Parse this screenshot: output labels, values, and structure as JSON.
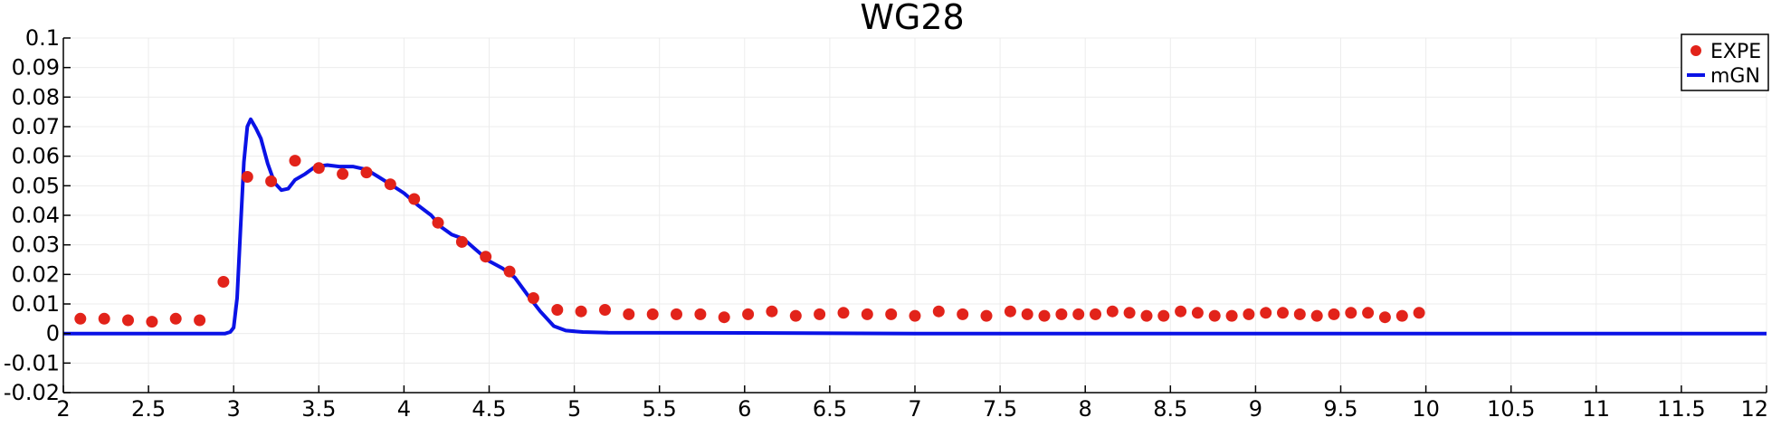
{
  "chart_data": {
    "type": "scatter",
    "title": "WG28",
    "xlabel": "",
    "ylabel": "",
    "xlim": [
      2,
      12
    ],
    "ylim": [
      -0.02,
      0.1
    ],
    "grid": true,
    "legend_position": "top-right",
    "x_ticks": [
      "2",
      "2.5",
      "3",
      "3.5",
      "4",
      "4.5",
      "5",
      "5.5",
      "6",
      "6.5",
      "7",
      "7.5",
      "8",
      "8.5",
      "9",
      "9.5",
      "10",
      "10.5",
      "11",
      "11.5",
      "12"
    ],
    "x_tick_values": [
      2,
      2.5,
      3,
      3.5,
      4,
      4.5,
      5,
      5.5,
      6,
      6.5,
      7,
      7.5,
      8,
      8.5,
      9,
      9.5,
      10,
      10.5,
      11,
      11.5,
      12
    ],
    "y_ticks": [
      "0.1",
      "0.09",
      "0.08",
      "0.07",
      "0.06",
      "0.05",
      "0.04",
      "0.03",
      "0.02",
      "0.01",
      "0",
      "-0.01",
      "-0.02"
    ],
    "y_tick_values": [
      0.1,
      0.09,
      0.08,
      0.07,
      0.06,
      0.05,
      0.04,
      0.03,
      0.02,
      0.01,
      0,
      -0.01,
      -0.02
    ],
    "series": [
      {
        "name": "EXPE",
        "kind": "scatter",
        "color": "#e2231a",
        "x": [
          2.1,
          2.24,
          2.38,
          2.52,
          2.66,
          2.8,
          2.94,
          3.08,
          3.22,
          3.36,
          3.5,
          3.64,
          3.78,
          3.92,
          4.06,
          4.2,
          4.34,
          4.48,
          4.62,
          4.76,
          4.9,
          5.04,
          5.18,
          5.32,
          5.46,
          5.6,
          5.74,
          5.88,
          6.02,
          6.16,
          6.3,
          6.44,
          6.58,
          6.72,
          6.86,
          7.0,
          7.14,
          7.28,
          7.42,
          7.56,
          7.66,
          7.76,
          7.86,
          7.96,
          8.06,
          8.16,
          8.26,
          8.36,
          8.46,
          8.56,
          8.66,
          8.76,
          8.86,
          8.96,
          9.06,
          9.16,
          9.26,
          9.36,
          9.46,
          9.56,
          9.66,
          9.76,
          9.86,
          9.96
        ],
        "y": [
          0.005,
          0.005,
          0.0045,
          0.004,
          0.005,
          0.0045,
          0.0175,
          0.053,
          0.0515,
          0.0585,
          0.056,
          0.054,
          0.0545,
          0.0505,
          0.0455,
          0.0375,
          0.031,
          0.026,
          0.021,
          0.012,
          0.008,
          0.0075,
          0.008,
          0.0065,
          0.0065,
          0.0065,
          0.0065,
          0.0055,
          0.0065,
          0.0075,
          0.006,
          0.0065,
          0.007,
          0.0065,
          0.0065,
          0.006,
          0.0075,
          0.0065,
          0.006,
          0.0075,
          0.0065,
          0.006,
          0.0065,
          0.0065,
          0.0065,
          0.0075,
          0.007,
          0.006,
          0.006,
          0.0075,
          0.007,
          0.006,
          0.006,
          0.0065,
          0.007,
          0.007,
          0.0065,
          0.006,
          0.0065,
          0.007,
          0.007,
          0.0055,
          0.006,
          0.007
        ]
      },
      {
        "name": "mGN",
        "kind": "line",
        "color": "#0a12e6",
        "x": [
          2,
          2.9,
          2.95,
          2.98,
          3.0,
          3.02,
          3.04,
          3.06,
          3.08,
          3.1,
          3.13,
          3.16,
          3.2,
          3.24,
          3.28,
          3.32,
          3.36,
          3.42,
          3.48,
          3.55,
          3.62,
          3.7,
          3.78,
          3.85,
          3.92,
          4.0,
          4.08,
          4.16,
          4.22,
          4.28,
          4.35,
          4.42,
          4.5,
          4.58,
          4.65,
          4.72,
          4.8,
          4.88,
          4.95,
          5.05,
          5.2,
          6.0,
          7.0,
          12
        ],
        "y": [
          0,
          0,
          0,
          0.0005,
          0.002,
          0.012,
          0.035,
          0.058,
          0.07,
          0.0725,
          0.0695,
          0.066,
          0.0575,
          0.051,
          0.0485,
          0.049,
          0.052,
          0.054,
          0.0565,
          0.057,
          0.0565,
          0.0565,
          0.0555,
          0.053,
          0.0505,
          0.0475,
          0.0435,
          0.04,
          0.036,
          0.0335,
          0.032,
          0.0285,
          0.0245,
          0.022,
          0.019,
          0.0135,
          0.0075,
          0.0025,
          0.001,
          0.0005,
          0.0003,
          0.0002,
          0.0,
          0.0
        ]
      }
    ]
  }
}
